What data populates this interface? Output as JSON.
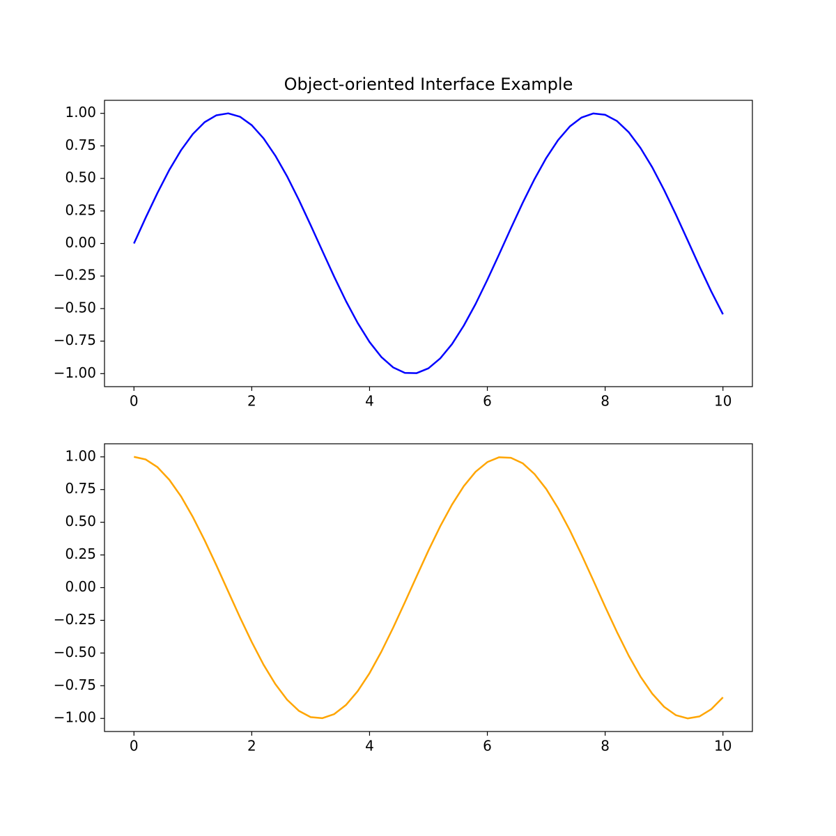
{
  "chart_data": [
    {
      "type": "line",
      "title": "Object-oriented Interface Example",
      "x": [
        0,
        0.2,
        0.4,
        0.6,
        0.8,
        1,
        1.2,
        1.4,
        1.6,
        1.8,
        2,
        2.2,
        2.4,
        2.6,
        2.8,
        3,
        3.2,
        3.4,
        3.6,
        3.8,
        4,
        4.2,
        4.4,
        4.6,
        4.8,
        5,
        5.2,
        5.4,
        5.6,
        5.8,
        6,
        6.2,
        6.4,
        6.6,
        6.8,
        7,
        7.2,
        7.4,
        7.6,
        7.8,
        8,
        8.2,
        8.4,
        8.6,
        8.8,
        9,
        9.2,
        9.4,
        9.6,
        9.8,
        10
      ],
      "values": [
        0,
        0.199,
        0.389,
        0.565,
        0.717,
        0.841,
        0.932,
        0.985,
        1.0,
        0.974,
        0.909,
        0.808,
        0.675,
        0.516,
        0.335,
        0.141,
        -0.058,
        -0.256,
        -0.443,
        -0.612,
        -0.757,
        -0.872,
        -0.952,
        -0.994,
        -0.996,
        -0.959,
        -0.883,
        -0.773,
        -0.631,
        -0.465,
        -0.279,
        -0.083,
        0.117,
        0.312,
        0.494,
        0.657,
        0.794,
        0.899,
        0.968,
        0.999,
        0.989,
        0.941,
        0.855,
        0.734,
        0.585,
        0.412,
        0.223,
        0.025,
        -0.175,
        -0.367,
        -0.544
      ],
      "color": "#0000ff",
      "xlim": [
        -0.5,
        10.5
      ],
      "ylim": [
        -1.1,
        1.1
      ],
      "xticks": [
        0,
        2,
        4,
        6,
        8,
        10
      ],
      "yticks": [
        {
          "value": -1,
          "label": "−1.00"
        },
        {
          "value": -0.75,
          "label": "−0.75"
        },
        {
          "value": -0.5,
          "label": "−0.50"
        },
        {
          "value": -0.25,
          "label": "−0.25"
        },
        {
          "value": 0,
          "label": "0.00"
        },
        {
          "value": 0.25,
          "label": "0.25"
        },
        {
          "value": 0.5,
          "label": "0.50"
        },
        {
          "value": 0.75,
          "label": "0.75"
        },
        {
          "value": 1,
          "label": "1.00"
        }
      ]
    },
    {
      "type": "line",
      "x": [
        0,
        0.2,
        0.4,
        0.6,
        0.8,
        1,
        1.2,
        1.4,
        1.6,
        1.8,
        2,
        2.2,
        2.4,
        2.6,
        2.8,
        3,
        3.2,
        3.4,
        3.6,
        3.8,
        4,
        4.2,
        4.4,
        4.6,
        4.8,
        5,
        5.2,
        5.4,
        5.6,
        5.8,
        6,
        6.2,
        6.4,
        6.6,
        6.8,
        7,
        7.2,
        7.4,
        7.6,
        7.8,
        8,
        8.2,
        8.4,
        8.6,
        8.8,
        9,
        9.2,
        9.4,
        9.6,
        9.8,
        10
      ],
      "values": [
        1,
        0.98,
        0.921,
        0.825,
        0.697,
        0.54,
        0.362,
        0.17,
        -0.029,
        -0.227,
        -0.416,
        -0.589,
        -0.737,
        -0.857,
        -0.942,
        -0.99,
        -0.998,
        -0.967,
        -0.897,
        -0.791,
        -0.654,
        -0.49,
        -0.307,
        -0.112,
        0.087,
        0.284,
        0.469,
        0.635,
        0.776,
        0.886,
        0.96,
        0.997,
        0.993,
        0.951,
        0.869,
        0.754,
        0.608,
        0.439,
        0.251,
        0.054,
        -0.146,
        -0.339,
        -0.52,
        -0.68,
        -0.811,
        -0.911,
        -0.975,
        -1.0,
        -0.985,
        -0.93,
        -0.839
      ],
      "color": "#ffa500",
      "xlim": [
        -0.5,
        10.5
      ],
      "ylim": [
        -1.1,
        1.1
      ],
      "xticks": [
        0,
        2,
        4,
        6,
        8,
        10
      ],
      "yticks": [
        {
          "value": -1,
          "label": "−1.00"
        },
        {
          "value": -0.75,
          "label": "−0.75"
        },
        {
          "value": -0.5,
          "label": "−0.50"
        },
        {
          "value": -0.25,
          "label": "−0.25"
        },
        {
          "value": 0,
          "label": "0.00"
        },
        {
          "value": 0.25,
          "label": "0.25"
        },
        {
          "value": 0.5,
          "label": "0.50"
        },
        {
          "value": 0.75,
          "label": "0.75"
        },
        {
          "value": 1,
          "label": "1.00"
        }
      ]
    }
  ]
}
